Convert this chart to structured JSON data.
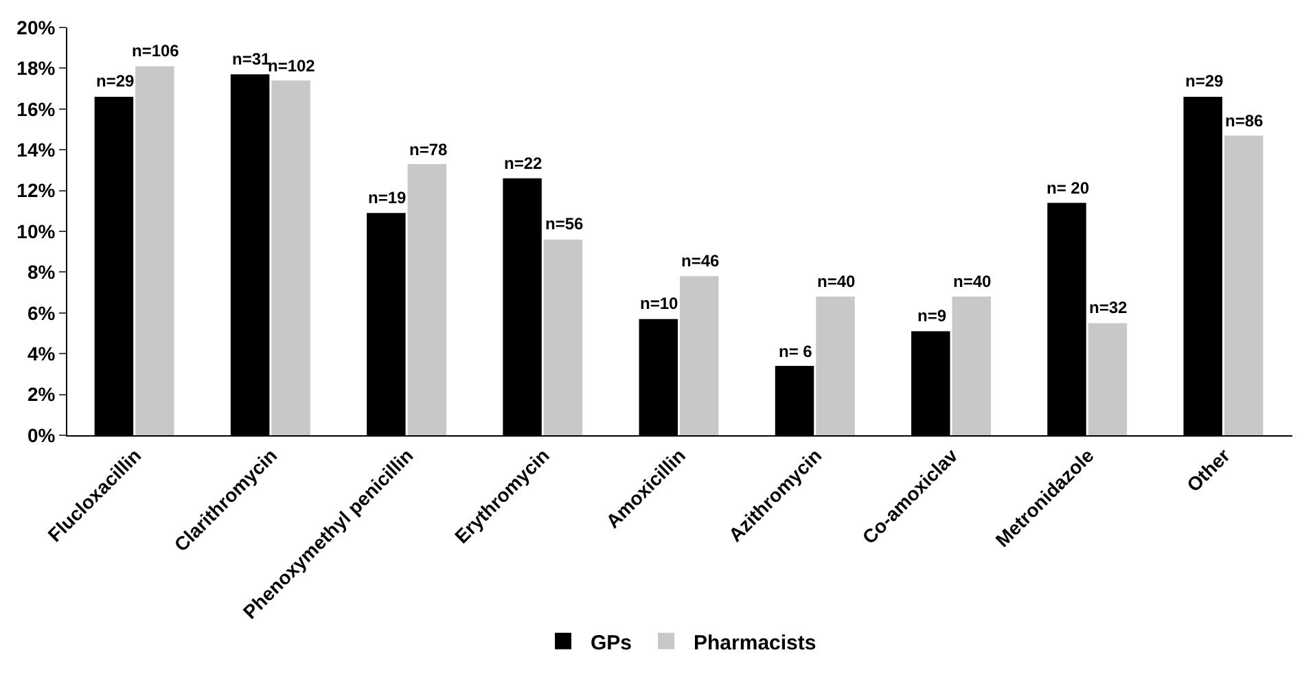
{
  "chart_data": {
    "type": "bar",
    "categories": [
      "Flucloxacillin",
      "Clarithromycin",
      "Phenoxymethyl penicillin",
      "Erythromycin",
      "Amoxicillin",
      "Azithromycin",
      "Co-amoxiclav",
      "Metronidazole",
      "Other"
    ],
    "series": [
      {
        "name": "GPs",
        "color": "#000000",
        "values": [
          16.6,
          17.7,
          10.9,
          12.6,
          5.7,
          3.4,
          5.1,
          11.4,
          16.6
        ]
      },
      {
        "name": "Pharmacists",
        "color": "#c8c8c8",
        "values": [
          18.1,
          17.4,
          13.3,
          9.6,
          7.8,
          6.8,
          6.8,
          5.5,
          14.7
        ]
      }
    ],
    "annotations": [
      {
        "text": "n=29",
        "x": "Flucloxacillin",
        "y": 16.6
      },
      {
        "text": "n=31",
        "x": "Clarithromycin",
        "y": 17.7
      },
      {
        "text": "n=19",
        "x": "Phenoxymethyl penicillin",
        "y": 10.9
      },
      {
        "text": "n=22",
        "x": "Erythromycin",
        "y": 12.6
      },
      {
        "text": "n=10",
        "x": "Amoxicillin",
        "y": 5.7
      },
      {
        "text": "n= 6",
        "x": "Azithromycin",
        "y": 3.4
      },
      {
        "text": "n=9",
        "x": "Co-amoxiclav",
        "y": 5.1
      },
      {
        "text": "n= 20",
        "x": "Metronidazole",
        "y": 11.4
      },
      {
        "text": "n=29",
        "x": "Other",
        "y": 16.6
      },
      {
        "text": "n=106",
        "x": "Flucloxacillin",
        "y": 18.1
      },
      {
        "text": "n=102",
        "x": "Clarithromycin",
        "y": 17.4
      },
      {
        "text": "n=78",
        "x": "Phenoxymethyl penicillin",
        "y": 13.3
      },
      {
        "text": "n=56",
        "x": "Erythromycin",
        "y": 9.6
      },
      {
        "text": "n=46",
        "x": "Amoxicillin",
        "y": 7.8
      },
      {
        "text": "n=40",
        "x": "Azithromycin",
        "y": 6.8
      },
      {
        "text": "n=40",
        "x": "Co-amoxiclav",
        "y": 6.8
      },
      {
        "text": "n=32",
        "x": "Metronidazole",
        "y": 5.5
      },
      {
        "text": "n=86",
        "x": "Other",
        "y": 14.7
      }
    ],
    "ylim": [
      0,
      20
    ],
    "yticks": [
      {
        "value": 0,
        "label": "0%"
      },
      {
        "value": 2,
        "label": "2%"
      },
      {
        "value": 4,
        "label": "4%"
      },
      {
        "value": 6,
        "label": "6%"
      },
      {
        "value": 8,
        "label": "8%"
      },
      {
        "value": 10,
        "label": "10%"
      },
      {
        "value": 12,
        "label": "12%"
      },
      {
        "value": 14,
        "label": "14%"
      },
      {
        "value": 16,
        "label": "16%"
      },
      {
        "value": 18,
        "label": "18%"
      },
      {
        "value": 20,
        "label": "20%"
      }
    ],
    "grid": false,
    "legend": "bottom"
  }
}
